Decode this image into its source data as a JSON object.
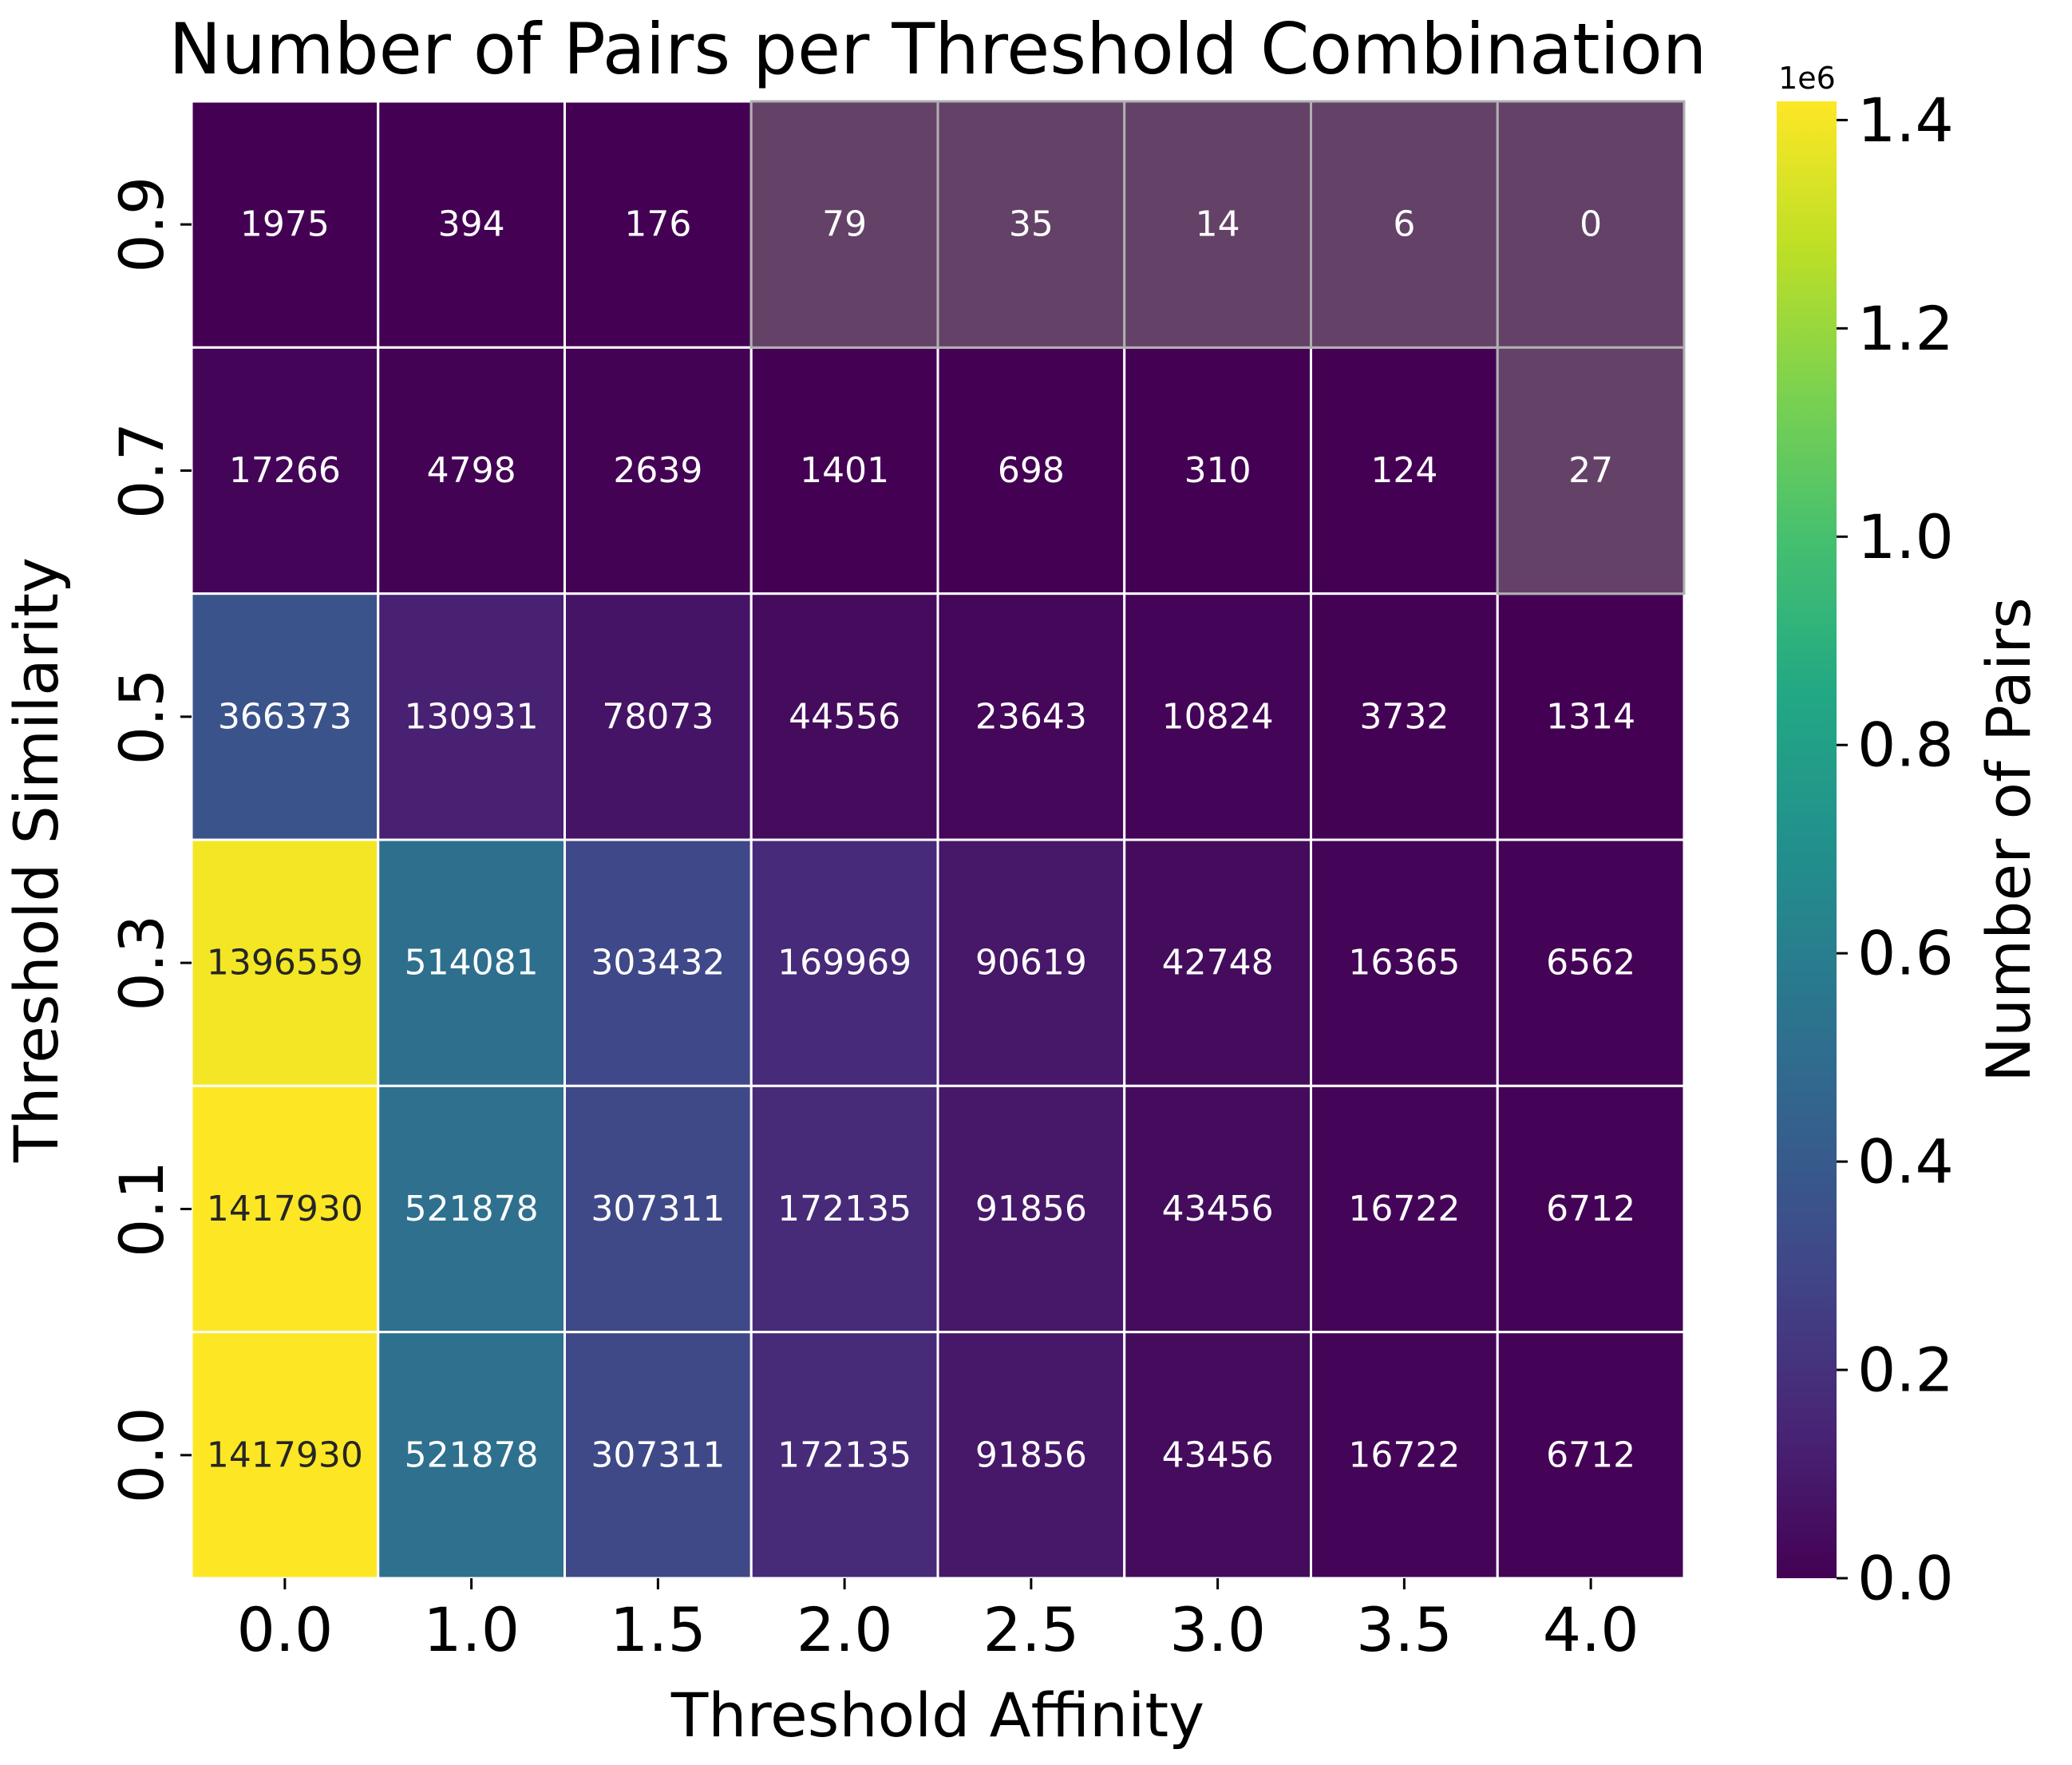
{
  "chart_data": {
    "type": "heatmap",
    "title": "Number of Pairs per Threshold Combination",
    "xlabel": "Threshold Affinity",
    "ylabel": "Threshold Similarity",
    "x_categories": [
      "0.0",
      "1.0",
      "1.5",
      "2.0",
      "2.5",
      "3.0",
      "3.5",
      "4.0"
    ],
    "y_categories": [
      "0.9",
      "0.7",
      "0.5",
      "0.3",
      "0.1",
      "0.0"
    ],
    "values": [
      [
        1975,
        394,
        176,
        79,
        35,
        14,
        6,
        0
      ],
      [
        17266,
        4798,
        2639,
        1401,
        698,
        310,
        124,
        27
      ],
      [
        366373,
        130931,
        78073,
        44556,
        23643,
        10824,
        3732,
        1314
      ],
      [
        1396559,
        514081,
        303432,
        169969,
        90619,
        42748,
        16365,
        6562
      ],
      [
        1417930,
        521878,
        307311,
        172135,
        91856,
        43456,
        16722,
        6712
      ],
      [
        1417930,
        521878,
        307311,
        172135,
        91856,
        43456,
        16722,
        6712
      ]
    ],
    "masked_cells": [
      [
        0,
        3
      ],
      [
        0,
        4
      ],
      [
        0,
        5
      ],
      [
        0,
        6
      ],
      [
        0,
        7
      ],
      [
        1,
        7
      ]
    ],
    "colormap": "viridis",
    "vmin": 0,
    "vmax": 1417930,
    "colorbar": {
      "label": "Number of Pairs",
      "offset_text": "1e6",
      "ticks": [
        "0.0",
        "0.2",
        "0.4",
        "0.6",
        "0.8",
        "1.0",
        "1.2",
        "1.4"
      ],
      "tick_values": [
        0,
        0.2,
        0.4,
        0.6,
        0.8,
        1.0,
        1.2,
        1.4
      ]
    },
    "colors": {
      "masked": "#644268",
      "cell_border": "#ffffff",
      "masked_border": "#b0b0b0",
      "annotation_light": "#ffffff",
      "annotation_dark": "#262626"
    }
  }
}
